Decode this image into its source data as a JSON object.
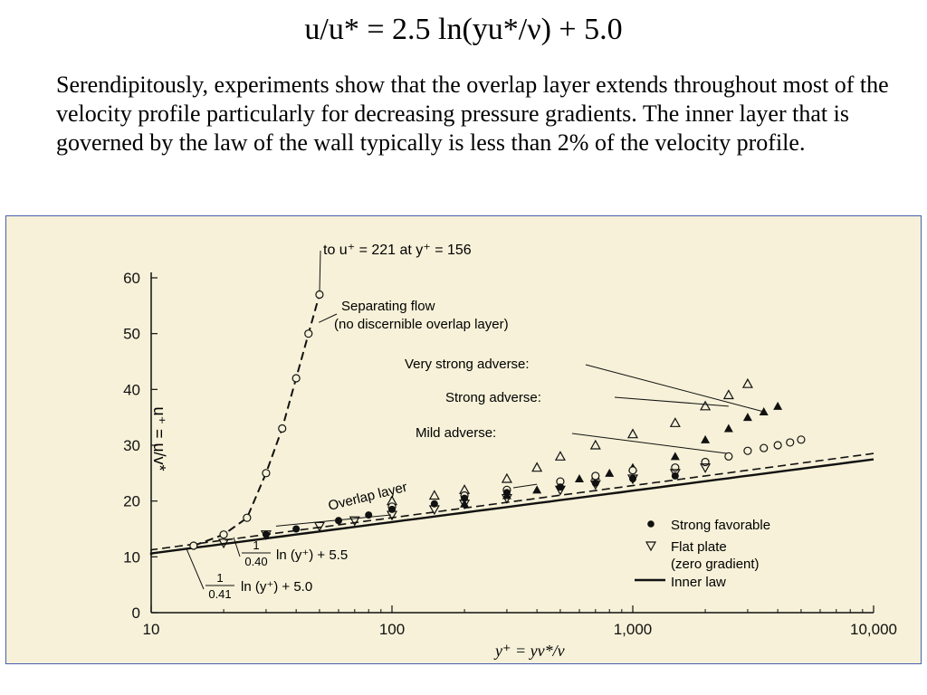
{
  "slide": {
    "title": "u/u* = 2.5 ln(yu*/ν) + 5.0",
    "body": "Serendipitously, experiments show that the overlap layer extends throughout most of the velocity profile particularly for decreasing pressure gradients. The inner layer that is governed by the law of the wall typically is less than 2% of the velocity profile."
  },
  "chart_data": {
    "type": "scatter",
    "x_scale": "log",
    "xlim": [
      10,
      10000
    ],
    "ylim": [
      0,
      60
    ],
    "x_tick_labels": [
      "10",
      "100",
      "1,000",
      "10,000"
    ],
    "y_tick_labels": [
      "0",
      "10",
      "20",
      "30",
      "40",
      "50",
      "60"
    ],
    "xlabel": "y⁺ = yv*/ν",
    "ylabel": "u⁺ = u/v*",
    "colors": {
      "frame": "#4a5fb0",
      "paper": "#f6f1d8",
      "ink": "#111111"
    },
    "annotations": {
      "top": "to u⁺ = 221 at y⁺ = 156",
      "separating_1": "Separating flow",
      "separating_2": "(no discernible overlap layer)",
      "very_strong": "Very strong adverse:",
      "strong": "Strong adverse:",
      "mild": "Mild adverse:",
      "overlap": "Overlap layer",
      "eq1_num": "1",
      "eq1_den": "0.40",
      "eq1_rest": "ln (y⁺) + 5.5",
      "eq2_num": "1",
      "eq2_den": "0.41",
      "eq2_rest": "ln (y⁺) + 5.0"
    },
    "legend": {
      "placement": "bottom-right",
      "entries": [
        "Strong favorable",
        "Flat plate",
        "(zero gradient)",
        "Inner law"
      ]
    },
    "series": [
      {
        "name": "Separating flow",
        "marker": "open-circle",
        "x": [
          15,
          20,
          25,
          30,
          35,
          40,
          45,
          50
        ],
        "y": [
          12,
          14,
          17,
          25,
          33,
          42,
          50,
          57
        ]
      },
      {
        "name": "Very strong adverse:",
        "marker": "filled-triangle",
        "x": [
          200,
          300,
          400,
          500,
          600,
          700,
          800,
          1000,
          1500,
          2000,
          2500,
          3000,
          3500,
          4000
        ],
        "y": [
          19.5,
          21,
          22,
          23,
          24,
          24.5,
          25,
          26,
          28,
          31,
          33,
          35,
          36,
          37
        ]
      },
      {
        "name": "Strong adverse:",
        "marker": "open-triangle",
        "x": [
          100,
          150,
          200,
          300,
          400,
          500,
          700,
          1000,
          1500,
          2000,
          2500,
          3000
        ],
        "y": [
          20,
          21,
          22,
          24,
          26,
          28,
          30,
          32,
          34,
          37,
          39,
          41
        ]
      },
      {
        "name": "Mild adverse:",
        "marker": "open-circle",
        "x": [
          100,
          200,
          300,
          500,
          700,
          1000,
          1500,
          2000,
          2500,
          3000,
          3500,
          4000,
          4500,
          5000
        ],
        "y": [
          19,
          21,
          22,
          23.5,
          24.5,
          25.5,
          26,
          27,
          28,
          29,
          29.5,
          30,
          30.5,
          31
        ]
      },
      {
        "name": "Strong favorable",
        "marker": "filled-circle",
        "x": [
          30,
          40,
          60,
          80,
          100,
          150,
          200,
          300,
          500,
          700,
          1000,
          1500
        ],
        "y": [
          14,
          15,
          16.5,
          17.5,
          18.5,
          19.5,
          20.5,
          21.5,
          22.5,
          23.2,
          24,
          24.5
        ]
      },
      {
        "name": "Flat plate",
        "marker": "open-triangle-down",
        "x": [
          20,
          30,
          50,
          70,
          100,
          150,
          200,
          300,
          500,
          700,
          1000,
          1500,
          2000
        ],
        "y": [
          12.5,
          14,
          15.5,
          16.5,
          17.5,
          18.5,
          19.5,
          20.5,
          22,
          23,
          24,
          25,
          26
        ]
      }
    ],
    "lines": [
      {
        "name": "1/0.40 ln(y⁺) + 5.5",
        "style": "dashed",
        "slope": 2.5,
        "intercept": 5.5
      },
      {
        "name": "1/0.41 ln(y⁺) + 5.0",
        "style": "solid",
        "slope": 2.44,
        "intercept": 5.0
      }
    ]
  }
}
